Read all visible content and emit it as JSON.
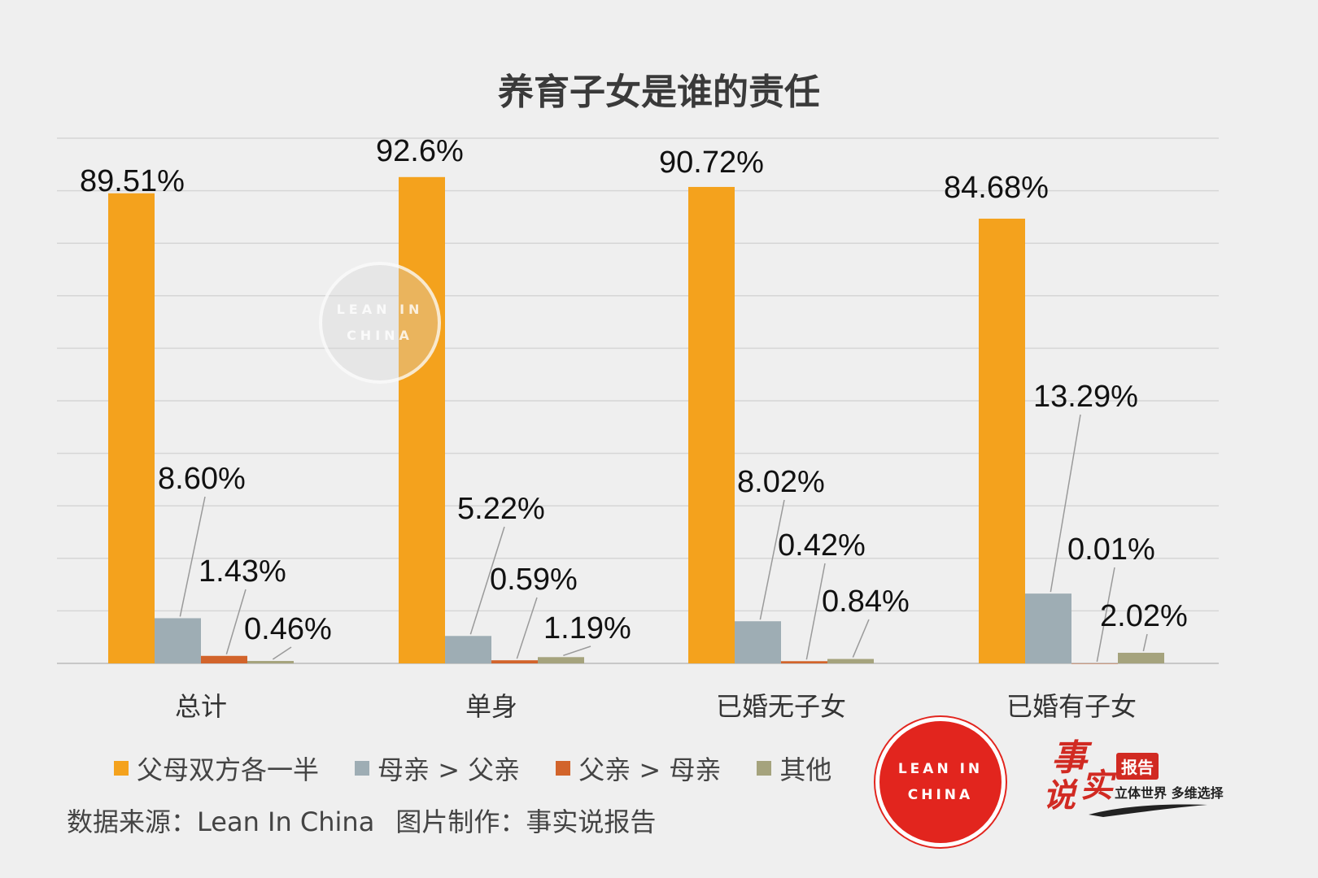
{
  "chart_data": {
    "type": "bar",
    "title": "养育子女是谁的责任",
    "categories": [
      "总计",
      "单身",
      "已婚无子女",
      "已婚有子女"
    ],
    "series": [
      {
        "name": "父母双方各一半",
        "color": "#f4a21d",
        "values": [
          89.51,
          92.6,
          90.72,
          84.68
        ],
        "labels": [
          "89.51%",
          "92.6%",
          "90.72%",
          "84.68%"
        ]
      },
      {
        "name": "母亲 > 父亲",
        "color": "#9eadb4",
        "values": [
          8.6,
          5.22,
          8.02,
          13.29
        ],
        "labels": [
          "8.60%",
          "5.22%",
          "8.02%",
          "13.29%"
        ]
      },
      {
        "name": "父亲 > 母亲",
        "color": "#d2642b",
        "values": [
          1.43,
          0.59,
          0.42,
          0.01
        ],
        "labels": [
          "1.43%",
          "0.59%",
          "0.42%",
          "0.01%"
        ]
      },
      {
        "name": "其他",
        "color": "#a5a37d",
        "values": [
          0.46,
          1.19,
          0.84,
          2.02
        ],
        "labels": [
          "0.46%",
          "1.19%",
          "0.84%",
          "2.02%"
        ]
      }
    ],
    "ylim": [
      0,
      100
    ],
    "grid": true,
    "legend": "bottom-left"
  },
  "footer": {
    "source": "数据来源：Lean In China",
    "made_by": "图片制作：事实说报告"
  },
  "logos": {
    "lean_in_line1": "LEAN IN",
    "lean_in_line2": "CHINA",
    "fact_char1": "事",
    "fact_char2": "实",
    "fact_char3": "说",
    "fact_badge": "报告",
    "fact_slogan": "立体世界 多维选择"
  }
}
